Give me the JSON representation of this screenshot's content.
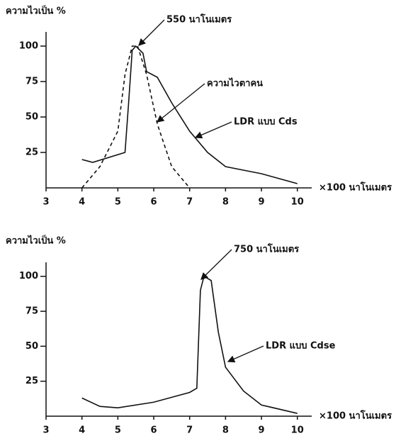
{
  "chart_data": [
    {
      "type": "line",
      "ylabel": "ความไวเป็น %",
      "xlabel": "×100 นาโนเมตร",
      "xlim": [
        3,
        10.4
      ],
      "ylim": [
        0,
        110
      ],
      "xticks": [
        3,
        4,
        5,
        6,
        7,
        8,
        9,
        10
      ],
      "yticks": [
        25,
        50,
        75,
        100
      ],
      "annotations": [
        "550 นาโนเมตร"
      ],
      "series": [
        {
          "name": "LDR แบบ Cds",
          "color": "#111111",
          "dash": false,
          "x": [
            4,
            4.3,
            5.2,
            5.3,
            5.4,
            5.5,
            5.7,
            5.8,
            6.1,
            6.5,
            7,
            7.5,
            8,
            9,
            10
          ],
          "values": [
            20,
            18,
            25,
            60,
            97,
            100,
            95,
            82,
            78,
            60,
            40,
            25,
            15,
            10,
            3
          ]
        },
        {
          "name": "ความไวตาคน",
          "color": "#111111",
          "dash": true,
          "x": [
            4,
            4.5,
            5,
            5.2,
            5.4,
            5.55,
            5.8,
            6.1,
            6.5,
            7
          ],
          "values": [
            0,
            15,
            40,
            80,
            100,
            100,
            80,
            45,
            15,
            0
          ]
        }
      ]
    },
    {
      "type": "line",
      "ylabel": "ความไวเป็น %",
      "xlabel": "×100 นาโนเมตร",
      "xlim": [
        3,
        10.4
      ],
      "ylim": [
        0,
        110
      ],
      "xticks": [
        3,
        4,
        5,
        6,
        7,
        8,
        9,
        10
      ],
      "yticks": [
        25,
        50,
        75,
        100
      ],
      "annotations": [
        "750 นาโนเมตร"
      ],
      "series": [
        {
          "name": "LDR แบบ Cdse",
          "color": "#111111",
          "dash": false,
          "x": [
            4,
            4.5,
            5,
            6,
            7,
            7.2,
            7.3,
            7.4,
            7.6,
            7.8,
            8,
            8.5,
            9,
            10
          ],
          "values": [
            13,
            7,
            6,
            10,
            17,
            20,
            90,
            100,
            97,
            60,
            35,
            18,
            8,
            2
          ]
        }
      ]
    }
  ]
}
